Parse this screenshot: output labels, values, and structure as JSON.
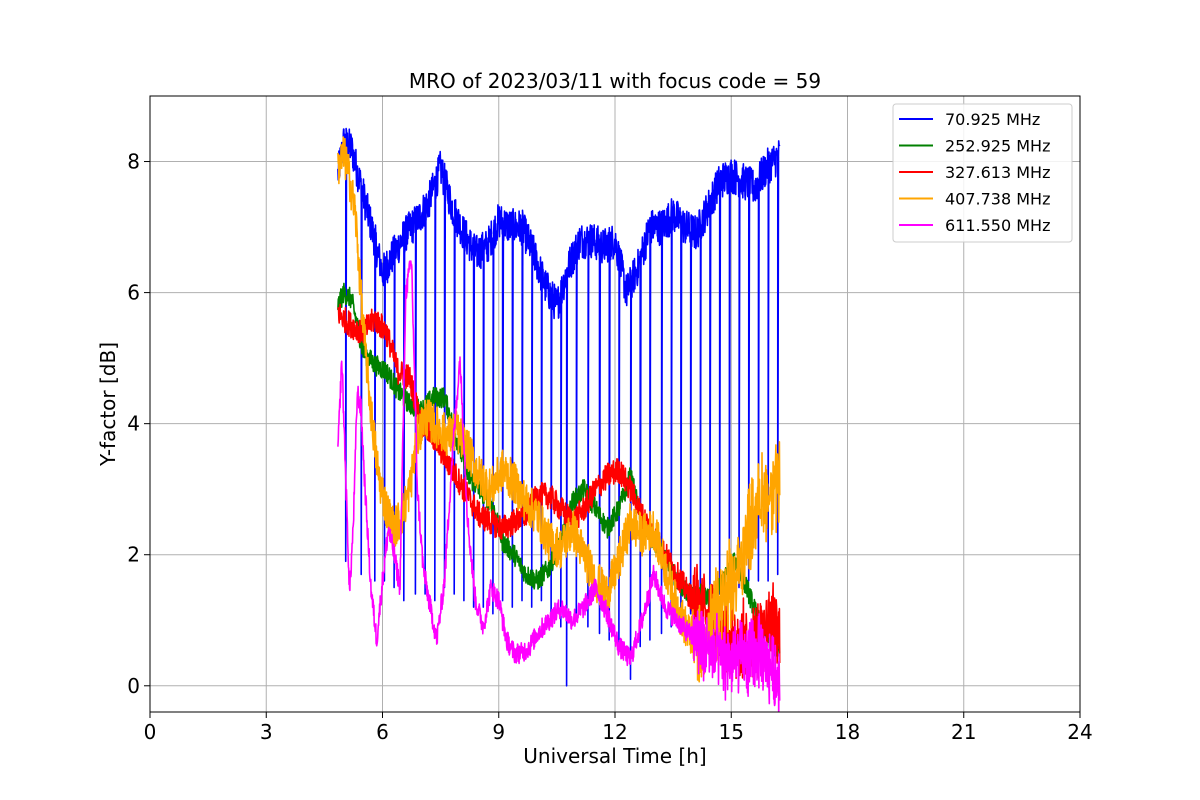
{
  "chart_data": {
    "type": "line",
    "title": "MRO of 2023/03/11 with focus code = 59",
    "xlabel": "Universal Time [h]",
    "ylabel": "Y-factor [dB]",
    "xlim": [
      0,
      24
    ],
    "ylim": [
      -0.4,
      9.0
    ],
    "xticks": [
      0,
      3,
      6,
      9,
      12,
      15,
      18,
      21,
      24
    ],
    "yticks": [
      0,
      2,
      4,
      6,
      8
    ],
    "grid": true,
    "legend_position": "top-right",
    "series": [
      {
        "name": " 70.925 MHz",
        "color": "#0000ff",
        "x": [
          4.85,
          5.0,
          5.2,
          5.5,
          5.8,
          6.0,
          6.3,
          6.6,
          6.9,
          7.2,
          7.5,
          7.8,
          8.1,
          8.4,
          8.7,
          9.0,
          9.3,
          9.6,
          9.9,
          10.2,
          10.5,
          10.8,
          11.1,
          11.4,
          11.7,
          12.0,
          12.3,
          12.6,
          12.9,
          13.2,
          13.5,
          13.8,
          14.1,
          14.4,
          14.7,
          15.0,
          15.3,
          15.6,
          15.9,
          16.25
        ],
        "y": [
          7.8,
          8.3,
          8.2,
          7.5,
          6.8,
          6.3,
          6.6,
          6.9,
          7.1,
          7.4,
          7.9,
          7.3,
          6.9,
          6.6,
          6.7,
          7.1,
          7.0,
          7.0,
          6.6,
          6.1,
          5.8,
          6.4,
          6.8,
          6.8,
          6.7,
          6.8,
          6.0,
          6.4,
          7.0,
          7.0,
          7.2,
          7.0,
          6.9,
          7.3,
          7.7,
          7.8,
          7.7,
          7.6,
          7.9,
          8.1
        ],
        "dips": [
          [
            5.05,
            1.9
          ],
          [
            5.45,
            1.7
          ],
          [
            5.8,
            1.6
          ],
          [
            6.05,
            1.6
          ],
          [
            6.3,
            1.5
          ],
          [
            6.55,
            1.3
          ],
          [
            6.85,
            1.4
          ],
          [
            7.1,
            1.4
          ],
          [
            7.35,
            1.3
          ],
          [
            7.6,
            1.5
          ],
          [
            7.85,
            1.4
          ],
          [
            8.1,
            1.3
          ],
          [
            8.35,
            1.2
          ],
          [
            8.6,
            1.2
          ],
          [
            8.85,
            1.1
          ],
          [
            9.1,
            1.3
          ],
          [
            9.35,
            1.2
          ],
          [
            9.6,
            1.3
          ],
          [
            9.85,
            1.2
          ],
          [
            10.1,
            1.3
          ],
          [
            10.35,
            1.0
          ],
          [
            10.6,
            0.9
          ],
          [
            10.75,
            0.0
          ],
          [
            11.0,
            1.0
          ],
          [
            11.3,
            0.9
          ],
          [
            11.6,
            0.8
          ],
          [
            11.85,
            0.7
          ],
          [
            12.1,
            0.6
          ],
          [
            12.4,
            0.1
          ],
          [
            12.65,
            0.6
          ],
          [
            12.9,
            0.7
          ],
          [
            13.2,
            0.8
          ],
          [
            13.45,
            0.9
          ],
          [
            13.7,
            1.0
          ],
          [
            13.95,
            1.1
          ],
          [
            14.2,
            1.2
          ],
          [
            14.45,
            1.3
          ],
          [
            14.7,
            1.4
          ],
          [
            14.95,
            1.5
          ],
          [
            15.2,
            1.5
          ],
          [
            15.45,
            1.6
          ],
          [
            15.7,
            1.6
          ],
          [
            15.95,
            1.6
          ],
          [
            16.2,
            1.7
          ]
        ]
      },
      {
        "name": "252.925 MHz",
        "color": "#008000",
        "x": [
          4.85,
          5.0,
          5.2,
          5.5,
          5.8,
          6.1,
          6.4,
          6.7,
          7.0,
          7.3,
          7.6,
          7.9,
          8.2,
          8.5,
          8.8,
          9.1,
          9.4,
          9.7,
          10.0,
          10.3,
          10.6,
          10.9,
          11.2,
          11.5,
          11.8,
          12.1,
          12.4,
          12.7,
          13.0,
          13.3,
          13.6,
          13.9,
          14.2,
          14.5,
          14.8,
          15.1,
          15.4,
          15.7,
          16.0,
          16.25
        ],
        "y": [
          5.8,
          6.0,
          5.9,
          5.1,
          4.9,
          4.8,
          4.5,
          4.3,
          4.2,
          4.4,
          4.4,
          3.8,
          3.2,
          3.0,
          2.8,
          2.2,
          2.0,
          1.7,
          1.6,
          1.8,
          2.2,
          2.8,
          3.0,
          2.7,
          2.4,
          2.7,
          3.2,
          2.5,
          2.2,
          1.9,
          1.6,
          1.4,
          1.4,
          1.3,
          1.6,
          1.9,
          1.5,
          1.0,
          0.7,
          0.5
        ]
      },
      {
        "name": "327.613 MHz",
        "color": "#ff0000",
        "x": [
          4.85,
          5.0,
          5.2,
          5.5,
          5.8,
          6.1,
          6.4,
          6.7,
          7.0,
          7.3,
          7.6,
          7.9,
          8.2,
          8.5,
          8.8,
          9.1,
          9.4,
          9.7,
          10.0,
          10.3,
          10.6,
          10.9,
          11.2,
          11.5,
          11.8,
          12.1,
          12.4,
          12.7,
          13.0,
          13.3,
          13.6,
          13.9,
          14.2,
          14.5,
          14.8,
          15.1,
          15.4,
          15.7,
          16.0,
          16.25
        ],
        "y": [
          5.7,
          5.6,
          5.5,
          5.4,
          5.6,
          5.4,
          4.8,
          4.7,
          4.0,
          3.8,
          3.5,
          3.2,
          2.9,
          2.6,
          2.5,
          2.4,
          2.5,
          2.6,
          2.9,
          2.9,
          2.7,
          2.5,
          2.7,
          3.0,
          3.2,
          3.3,
          3.0,
          2.6,
          2.3,
          2.0,
          1.7,
          1.4,
          1.2,
          1.0,
          0.8,
          0.6,
          0.7,
          0.8,
          1.0,
          0.9
        ]
      },
      {
        "name": "407.738 MHz",
        "color": "#ffa500",
        "x": [
          4.85,
          5.0,
          5.1,
          5.3,
          5.5,
          5.7,
          5.9,
          6.1,
          6.3,
          6.5,
          6.7,
          6.9,
          7.1,
          7.3,
          7.5,
          7.7,
          7.9,
          8.2,
          8.5,
          8.8,
          9.1,
          9.4,
          9.7,
          10.0,
          10.3,
          10.6,
          10.9,
          11.2,
          11.5,
          11.8,
          12.1,
          12.4,
          12.7,
          13.0,
          13.3,
          13.6,
          13.9,
          14.2,
          14.5,
          14.8,
          15.1,
          15.4,
          15.7,
          16.0,
          16.25
        ],
        "y": [
          7.9,
          8.1,
          7.9,
          7.2,
          5.5,
          4.2,
          3.2,
          2.7,
          2.4,
          2.6,
          3.0,
          3.8,
          4.1,
          4.0,
          3.9,
          3.8,
          3.9,
          3.6,
          3.2,
          3.0,
          3.3,
          3.1,
          2.8,
          2.6,
          2.2,
          2.1,
          2.4,
          2.0,
          1.6,
          1.4,
          1.9,
          2.5,
          2.3,
          2.4,
          1.8,
          1.2,
          0.8,
          0.6,
          0.9,
          1.3,
          1.6,
          2.3,
          2.8,
          3.0,
          3.0
        ]
      },
      {
        "name": "611.550 MHz",
        "color": "#ff00ff",
        "x": [
          4.85,
          4.95,
          5.05,
          5.15,
          5.25,
          5.35,
          5.45,
          5.55,
          5.7,
          5.85,
          6.0,
          6.15,
          6.3,
          6.45,
          6.6,
          6.75,
          6.9,
          7.05,
          7.2,
          7.4,
          7.6,
          7.8,
          8.0,
          8.2,
          8.4,
          8.6,
          8.8,
          9.0,
          9.2,
          9.4,
          9.6,
          9.8,
          10.0,
          10.3,
          10.6,
          10.9,
          11.2,
          11.5,
          11.8,
          12.1,
          12.4,
          12.7,
          13.0,
          13.3,
          13.6,
          13.9,
          14.2,
          14.5,
          14.8,
          15.1,
          15.4,
          15.7,
          16.0,
          16.25
        ],
        "y": [
          3.6,
          5.0,
          3.2,
          1.4,
          2.5,
          4.5,
          4.2,
          3.0,
          1.5,
          0.7,
          1.6,
          2.4,
          2.0,
          1.5,
          6.0,
          6.5,
          3.0,
          1.8,
          1.3,
          0.7,
          1.6,
          3.5,
          5.0,
          2.5,
          1.3,
          0.9,
          1.5,
          1.3,
          0.7,
          0.5,
          0.5,
          0.6,
          0.8,
          1.0,
          1.2,
          1.0,
          1.2,
          1.5,
          1.1,
          0.6,
          0.4,
          1.0,
          1.7,
          1.2,
          1.0,
          0.8,
          0.7,
          0.5,
          0.4,
          0.4,
          0.4,
          0.5,
          0.3,
          0.1
        ]
      }
    ]
  }
}
